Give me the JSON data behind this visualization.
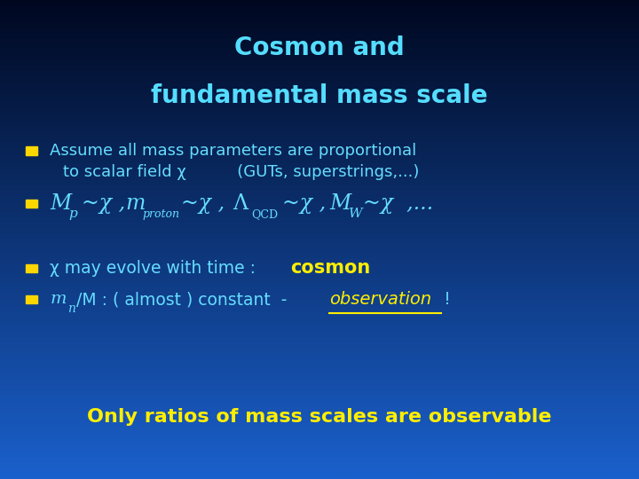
{
  "title_line1": "Cosmon and",
  "title_line2": "fundamental mass scale",
  "title_color": "#55ddff",
  "bg_top": "#000820",
  "bg_bottom": "#1a4fcc",
  "bullet_color": "#ffd700",
  "text_color": "#66ddff",
  "yellow_color": "#ffee00",
  "bottom_text": "Only ratios of mass scales are observable",
  "figsize": [
    7.2,
    5.4
  ],
  "dpi": 100
}
